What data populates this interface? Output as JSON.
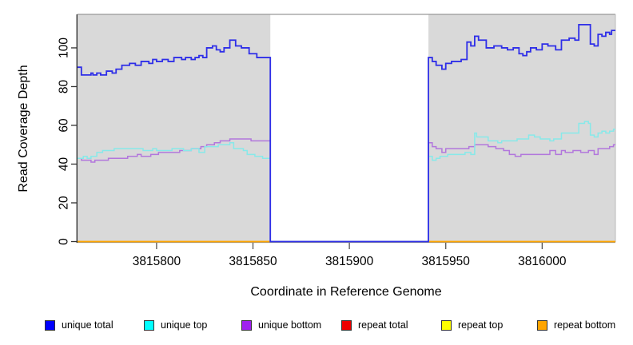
{
  "chart_data": {
    "type": "line",
    "subtype": "step",
    "title": "",
    "xlabel": "Coordinate in Reference Genome",
    "ylabel": "Read Coverage Depth",
    "xlim": [
      3815759,
      3816038
    ],
    "ylim": [
      0,
      117.5
    ],
    "x_ticks": [
      3815800,
      3815850,
      3815900,
      3815950,
      3816000
    ],
    "y_ticks": [
      0,
      20,
      40,
      60,
      80,
      100
    ],
    "grid": false,
    "panel_bg": "#d9d9d9",
    "shaded_regions": [
      [
        3815759,
        3815859
      ],
      [
        3815941,
        3816038
      ]
    ],
    "gap_region": [
      3815859,
      3815941
    ],
    "legend_position": "bottom",
    "legend": [
      {
        "label": "unique total",
        "color": "#0000ff"
      },
      {
        "label": "unique top",
        "color": "#00ffff"
      },
      {
        "label": "unique bottom",
        "color": "#a020f0"
      },
      {
        "label": "repeat total",
        "color": "#ee0000"
      },
      {
        "label": "repeat top",
        "color": "#ffff00"
      },
      {
        "label": "repeat bottom",
        "color": "#ffa500"
      }
    ],
    "series": [
      {
        "name": "repeat total",
        "color": "#ff4444",
        "lw": 1.4,
        "points": [
          [
            3815759,
            0
          ],
          [
            3816038,
            0
          ]
        ]
      },
      {
        "name": "repeat top",
        "color": "#ffff66",
        "lw": 1.4,
        "points": [
          [
            3815759,
            0
          ],
          [
            3816038,
            0
          ]
        ]
      },
      {
        "name": "repeat bottom",
        "color": "#ffa500",
        "lw": 1.8,
        "points": [
          [
            3815759,
            0
          ],
          [
            3816038,
            0
          ]
        ]
      },
      {
        "name": "unique bottom",
        "color": "#b277dc",
        "lw": 1.5,
        "points": [
          [
            3815759,
            43
          ],
          [
            3815761,
            42
          ],
          [
            3815766,
            41
          ],
          [
            3815768,
            42
          ],
          [
            3815775,
            43
          ],
          [
            3815785,
            44
          ],
          [
            3815790,
            45
          ],
          [
            3815792,
            44
          ],
          [
            3815797,
            45
          ],
          [
            3815801,
            46
          ],
          [
            3815812,
            47
          ],
          [
            3815818,
            48
          ],
          [
            3815823,
            49
          ],
          [
            3815826,
            50
          ],
          [
            3815830,
            51
          ],
          [
            3815833,
            52
          ],
          [
            3815838,
            53
          ],
          [
            3815849,
            52
          ],
          [
            3815859,
            0
          ],
          [
            3815941,
            51
          ],
          [
            3815943,
            49
          ],
          [
            3815945,
            48
          ],
          [
            3815948,
            46
          ],
          [
            3815950,
            48
          ],
          [
            3815962,
            49
          ],
          [
            3815965,
            50
          ],
          [
            3815972,
            49
          ],
          [
            3815976,
            48
          ],
          [
            3815980,
            47
          ],
          [
            3815983,
            45
          ],
          [
            3815986,
            44
          ],
          [
            3815989,
            45
          ],
          [
            3816004,
            47
          ],
          [
            3816007,
            45
          ],
          [
            3816010,
            47
          ],
          [
            3816012,
            46
          ],
          [
            3816016,
            47
          ],
          [
            3816020,
            46
          ],
          [
            3816024,
            47
          ],
          [
            3816027,
            45
          ],
          [
            3816029,
            48
          ],
          [
            3816035,
            49
          ],
          [
            3816037,
            50
          ],
          [
            3816038,
            50
          ]
        ]
      },
      {
        "name": "unique top",
        "color": "#87e9e9",
        "lw": 1.5,
        "points": [
          [
            3815759,
            43
          ],
          [
            3815762,
            44
          ],
          [
            3815764,
            43
          ],
          [
            3815766,
            44
          ],
          [
            3815769,
            46
          ],
          [
            3815772,
            47
          ],
          [
            3815778,
            48
          ],
          [
            3815793,
            47
          ],
          [
            3815798,
            48
          ],
          [
            3815800,
            47
          ],
          [
            3815808,
            48
          ],
          [
            3815814,
            47
          ],
          [
            3815818,
            48
          ],
          [
            3815822,
            46
          ],
          [
            3815825,
            49
          ],
          [
            3815832,
            50
          ],
          [
            3815838,
            51
          ],
          [
            3815840,
            48
          ],
          [
            3815845,
            47
          ],
          [
            3815847,
            45
          ],
          [
            3815851,
            44
          ],
          [
            3815855,
            43
          ],
          [
            3815859,
            0
          ],
          [
            3815941,
            44
          ],
          [
            3815943,
            42
          ],
          [
            3815945,
            43
          ],
          [
            3815947,
            44
          ],
          [
            3815951,
            45
          ],
          [
            3815960,
            46
          ],
          [
            3815963,
            45
          ],
          [
            3815965,
            56
          ],
          [
            3815966,
            54
          ],
          [
            3815972,
            52
          ],
          [
            3815977,
            51
          ],
          [
            3815979,
            52
          ],
          [
            3815987,
            53
          ],
          [
            3815993,
            55
          ],
          [
            3815996,
            54
          ],
          [
            3815999,
            53
          ],
          [
            3816004,
            52
          ],
          [
            3816006,
            53
          ],
          [
            3816010,
            56
          ],
          [
            3816019,
            61
          ],
          [
            3816022,
            62
          ],
          [
            3816024,
            61
          ],
          [
            3816025,
            55
          ],
          [
            3816027,
            54
          ],
          [
            3816029,
            56
          ],
          [
            3816031,
            57
          ],
          [
            3816033,
            56
          ],
          [
            3816035,
            57
          ],
          [
            3816037,
            58
          ],
          [
            3816038,
            58
          ]
        ]
      },
      {
        "name": "unique total",
        "color": "#2e2ee8",
        "lw": 1.8,
        "points": [
          [
            3815759,
            90
          ],
          [
            3815761,
            86
          ],
          [
            3815766,
            87
          ],
          [
            3815767,
            86
          ],
          [
            3815769,
            87
          ],
          [
            3815771,
            86
          ],
          [
            3815774,
            88
          ],
          [
            3815777,
            87
          ],
          [
            3815779,
            89
          ],
          [
            3815782,
            91
          ],
          [
            3815786,
            92
          ],
          [
            3815789,
            91
          ],
          [
            3815792,
            93
          ],
          [
            3815796,
            92
          ],
          [
            3815798,
            94
          ],
          [
            3815800,
            93
          ],
          [
            3815803,
            94
          ],
          [
            3815806,
            93
          ],
          [
            3815809,
            95
          ],
          [
            3815813,
            94
          ],
          [
            3815815,
            95
          ],
          [
            3815818,
            94
          ],
          [
            3815820,
            95
          ],
          [
            3815822,
            96
          ],
          [
            3815824,
            95
          ],
          [
            3815826,
            100
          ],
          [
            3815829,
            101
          ],
          [
            3815831,
            99
          ],
          [
            3815833,
            98
          ],
          [
            3815835,
            100
          ],
          [
            3815838,
            104
          ],
          [
            3815841,
            101
          ],
          [
            3815844,
            100
          ],
          [
            3815848,
            97
          ],
          [
            3815852,
            95
          ],
          [
            3815859,
            0
          ],
          [
            3815941,
            95
          ],
          [
            3815943,
            93
          ],
          [
            3815945,
            91
          ],
          [
            3815948,
            89
          ],
          [
            3815950,
            92
          ],
          [
            3815953,
            93
          ],
          [
            3815958,
            94
          ],
          [
            3815961,
            103
          ],
          [
            3815963,
            101
          ],
          [
            3815965,
            106
          ],
          [
            3815967,
            104
          ],
          [
            3815971,
            100
          ],
          [
            3815975,
            101
          ],
          [
            3815979,
            100
          ],
          [
            3815982,
            99
          ],
          [
            3815985,
            100
          ],
          [
            3815988,
            97
          ],
          [
            3815990,
            96
          ],
          [
            3815992,
            98
          ],
          [
            3815994,
            100
          ],
          [
            3815997,
            99
          ],
          [
            3816000,
            102
          ],
          [
            3816003,
            101
          ],
          [
            3816007,
            99
          ],
          [
            3816010,
            104
          ],
          [
            3816014,
            105
          ],
          [
            3816017,
            104
          ],
          [
            3816019,
            112
          ],
          [
            3816025,
            102
          ],
          [
            3816027,
            101
          ],
          [
            3816029,
            107
          ],
          [
            3816031,
            106
          ],
          [
            3816033,
            108
          ],
          [
            3816035,
            107
          ],
          [
            3816036,
            109
          ],
          [
            3816038,
            109
          ]
        ]
      }
    ]
  }
}
